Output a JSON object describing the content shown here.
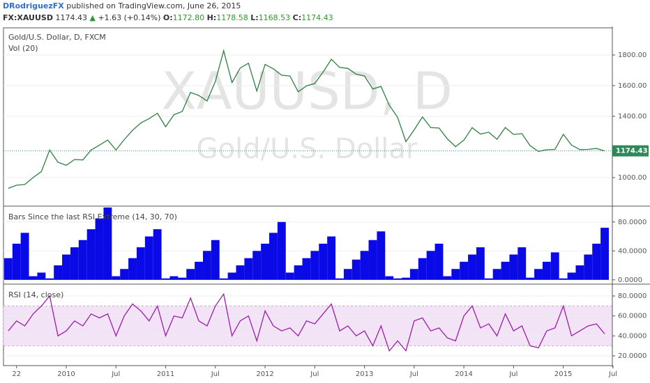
{
  "header": {
    "author": "DRodriguezFX",
    "published": "published on TradingView.com, June 26, 2015",
    "symbol": "FX:XAUUSD",
    "price": "1174.43",
    "arrow": "▲",
    "change": "+1.63 (+0.14%)",
    "open_label": "O:",
    "open": "1172.80",
    "high_label": "H:",
    "high": "1178.58",
    "low_label": "L:",
    "low": "1168.53",
    "close_label": "C:",
    "close": "1174.43"
  },
  "chart_data": [
    {
      "type": "line",
      "title": "Gold/U.S. Dollar, D, FXCM",
      "subtitle": "Vol (20)",
      "watermark": "XAUUSD, D",
      "watermark_sub": "Gold/U.S. Dollar",
      "color": "#2f7f3f",
      "values": [
        930,
        950,
        955,
        1000,
        1040,
        1180,
        1100,
        1080,
        1118,
        1115,
        1180,
        1212,
        1245,
        1180,
        1248,
        1308,
        1357,
        1385,
        1420,
        1332,
        1410,
        1432,
        1556,
        1536,
        1500,
        1628,
        1828,
        1620,
        1715,
        1746,
        1565,
        1738,
        1710,
        1668,
        1663,
        1560,
        1598,
        1614,
        1688,
        1772,
        1719,
        1712,
        1675,
        1663,
        1578,
        1595,
        1472,
        1393,
        1234,
        1312,
        1396,
        1326,
        1323,
        1253,
        1202,
        1244,
        1326,
        1284,
        1296,
        1250,
        1327,
        1282,
        1287,
        1208,
        1171,
        1182,
        1184,
        1283,
        1212,
        1183,
        1184,
        1190,
        1174,
        null
      ],
      "last_price": 1174.43,
      "ylim": [
        823,
        1977
      ],
      "yticks": [
        {
          "value": 1000,
          "label": "1000.00"
        },
        {
          "value": 1400,
          "label": "1400.00"
        },
        {
          "value": 1600,
          "label": "1600.00"
        },
        {
          "value": 1800,
          "label": "1800.00"
        }
      ]
    },
    {
      "type": "area",
      "title": "Bars Since the last RSI Extreme (14, 30, 70)",
      "color": "#0a0ae6",
      "values": [
        30,
        50,
        65,
        5,
        10,
        2,
        20,
        35,
        45,
        55,
        70,
        85,
        100,
        5,
        15,
        30,
        45,
        60,
        70,
        2,
        5,
        3,
        15,
        25,
        40,
        55,
        2,
        10,
        20,
        30,
        40,
        50,
        65,
        80,
        10,
        20,
        30,
        40,
        50,
        60,
        2,
        15,
        28,
        40,
        55,
        67,
        5,
        2,
        3,
        15,
        30,
        40,
        50,
        5,
        15,
        25,
        35,
        45,
        2,
        15,
        25,
        35,
        45,
        3,
        15,
        25,
        38,
        2,
        10,
        20,
        35,
        50,
        72,
        null
      ],
      "ylim": [
        -4,
        100
      ],
      "yticks": [
        {
          "value": 0,
          "label": "0.0000"
        },
        {
          "value": 40,
          "label": "40.0000"
        },
        {
          "value": 80,
          "label": "80.0000"
        }
      ]
    },
    {
      "type": "line",
      "title": "RSI (14, close)",
      "color": "#9b1fa8",
      "band": [
        30,
        70
      ],
      "categories": [
        null,
        "22",
        null,
        null,
        null,
        null,
        null,
        "2010",
        null,
        null,
        null,
        null,
        null,
        "Jul",
        null,
        null,
        null,
        null,
        null,
        "2011",
        null,
        null,
        null,
        null,
        null,
        "Jul",
        null,
        null,
        null,
        null,
        null,
        "2012",
        null,
        null,
        null,
        null,
        null,
        "Jul",
        null,
        null,
        null,
        null,
        null,
        "2013",
        null,
        null,
        null,
        null,
        null,
        "Jul",
        null,
        null,
        null,
        null,
        null,
        "2014",
        null,
        null,
        null,
        null,
        null,
        "Jul",
        null,
        null,
        null,
        null,
        null,
        "2015",
        null,
        null,
        null,
        null,
        null,
        "Jul"
      ],
      "values": [
        45,
        55,
        50,
        62,
        70,
        80,
        40,
        45,
        55,
        50,
        62,
        58,
        62,
        40,
        60,
        72,
        65,
        55,
        70,
        40,
        60,
        58,
        78,
        55,
        50,
        70,
        82,
        40,
        55,
        60,
        35,
        65,
        50,
        45,
        48,
        40,
        55,
        52,
        62,
        72,
        45,
        50,
        40,
        45,
        30,
        50,
        25,
        35,
        25,
        55,
        58,
        45,
        48,
        38,
        35,
        60,
        70,
        48,
        52,
        40,
        62,
        45,
        50,
        30,
        28,
        45,
        48,
        70,
        40,
        45,
        50,
        52,
        42,
        null
      ],
      "ylim": [
        10.2,
        90.5
      ],
      "yticks": [
        {
          "value": 20,
          "label": "20.0000"
        },
        {
          "value": 40,
          "label": "40.0000"
        },
        {
          "value": 60,
          "label": "60.0000"
        },
        {
          "value": 80,
          "label": "80.0000"
        }
      ]
    }
  ]
}
